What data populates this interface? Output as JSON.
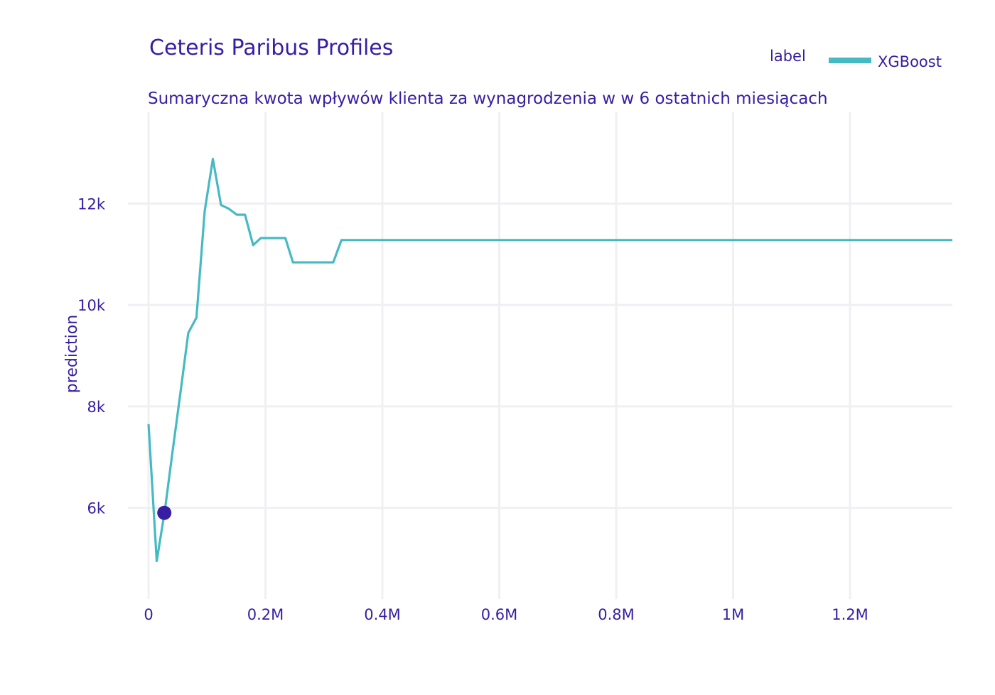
{
  "colors": {
    "text": "#371ea3",
    "line": "#46bac2",
    "point": "#371ea3",
    "grid": "#f0f0f4",
    "background": "#ffffff"
  },
  "chart_data": {
    "type": "line",
    "title": "Ceteris Paribus Profiles",
    "subtitle": "Sumaryczna kwota wpływów klienta za wynagrodzenia w w 6 ostatnich miesiącach",
    "xlabel": "",
    "ylabel": "prediction",
    "xlim": [
      0,
      1375000
    ],
    "ylim": [
      4200,
      13800
    ],
    "grid": true,
    "legend": {
      "title": "label",
      "placement": "top-right",
      "entries": [
        "XGBoost"
      ]
    },
    "x_ticks": [
      {
        "value": 0,
        "label": "0"
      },
      {
        "value": 200000,
        "label": "0.2M"
      },
      {
        "value": 400000,
        "label": "0.4M"
      },
      {
        "value": 600000,
        "label": "0.6M"
      },
      {
        "value": 800000,
        "label": "0.8M"
      },
      {
        "value": 1000000,
        "label": "1M"
      },
      {
        "value": 1200000,
        "label": "1.2M"
      }
    ],
    "y_ticks": [
      {
        "value": 6000,
        "label": "6k"
      },
      {
        "value": 8000,
        "label": "8k"
      },
      {
        "value": 10000,
        "label": "10k"
      },
      {
        "value": 12000,
        "label": "12k"
      }
    ],
    "series": [
      {
        "name": "XGBoost",
        "x": [
          0,
          14000,
          28000,
          41000,
          55000,
          68000,
          82000,
          96000,
          110000,
          124000,
          137000,
          151000,
          165000,
          179000,
          192000,
          206000,
          220000,
          234000,
          247000,
          261000,
          275000,
          288000,
          302000,
          316000,
          330000,
          1375000
        ],
        "y": [
          7650,
          4950,
          5950,
          7100,
          8300,
          9450,
          9750,
          11850,
          12880,
          11970,
          11900,
          11780,
          11780,
          11180,
          11320,
          11320,
          11320,
          11320,
          10840,
          10840,
          10840,
          10840,
          10840,
          10840,
          11280,
          11280
        ]
      }
    ],
    "observation": {
      "x": 27000,
      "y": 5900
    }
  }
}
